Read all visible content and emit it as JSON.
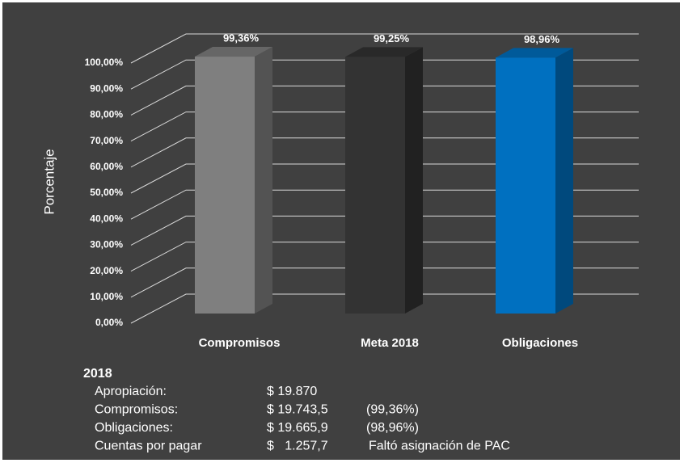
{
  "chart_data": {
    "type": "bar3d",
    "ylabel": "Porcentaje",
    "categories": [
      "Compromisos",
      "Meta 2018",
      "Obligaciones"
    ],
    "values": [
      99.36,
      99.25,
      98.96
    ],
    "value_labels": [
      "99,36%",
      "99,25%",
      "98,96%"
    ],
    "colors": [
      "#7f7f7f",
      "#333333",
      "#0070c0"
    ],
    "ylim": [
      0,
      100
    ],
    "yticks": [
      {
        "value": 0,
        "label": "0,00%"
      },
      {
        "value": 10,
        "label": "10,00%"
      },
      {
        "value": 20,
        "label": "20,00%"
      },
      {
        "value": 30,
        "label": "30,00%"
      },
      {
        "value": 40,
        "label": "40,00%"
      },
      {
        "value": 50,
        "label": "50,00%"
      },
      {
        "value": 60,
        "label": "60,00%"
      },
      {
        "value": 70,
        "label": "70,00%"
      },
      {
        "value": 80,
        "label": "80,00%"
      },
      {
        "value": 90,
        "label": "90,00%"
      },
      {
        "value": 100,
        "label": "100,00%"
      }
    ],
    "grid": true
  },
  "summary": {
    "title": "2018",
    "rows": [
      [
        "Apropiación:",
        "$ 19.870",
        ""
      ],
      [
        "Compromisos:",
        "$ 19.743,5",
        "(99,36%)"
      ],
      [
        "Obligaciones:",
        "$ 19.665,9",
        "(98,96%)"
      ],
      [
        "Cuentas por pagar",
        "$   1.257,7",
        "Faltó asignación de PAC"
      ]
    ]
  }
}
